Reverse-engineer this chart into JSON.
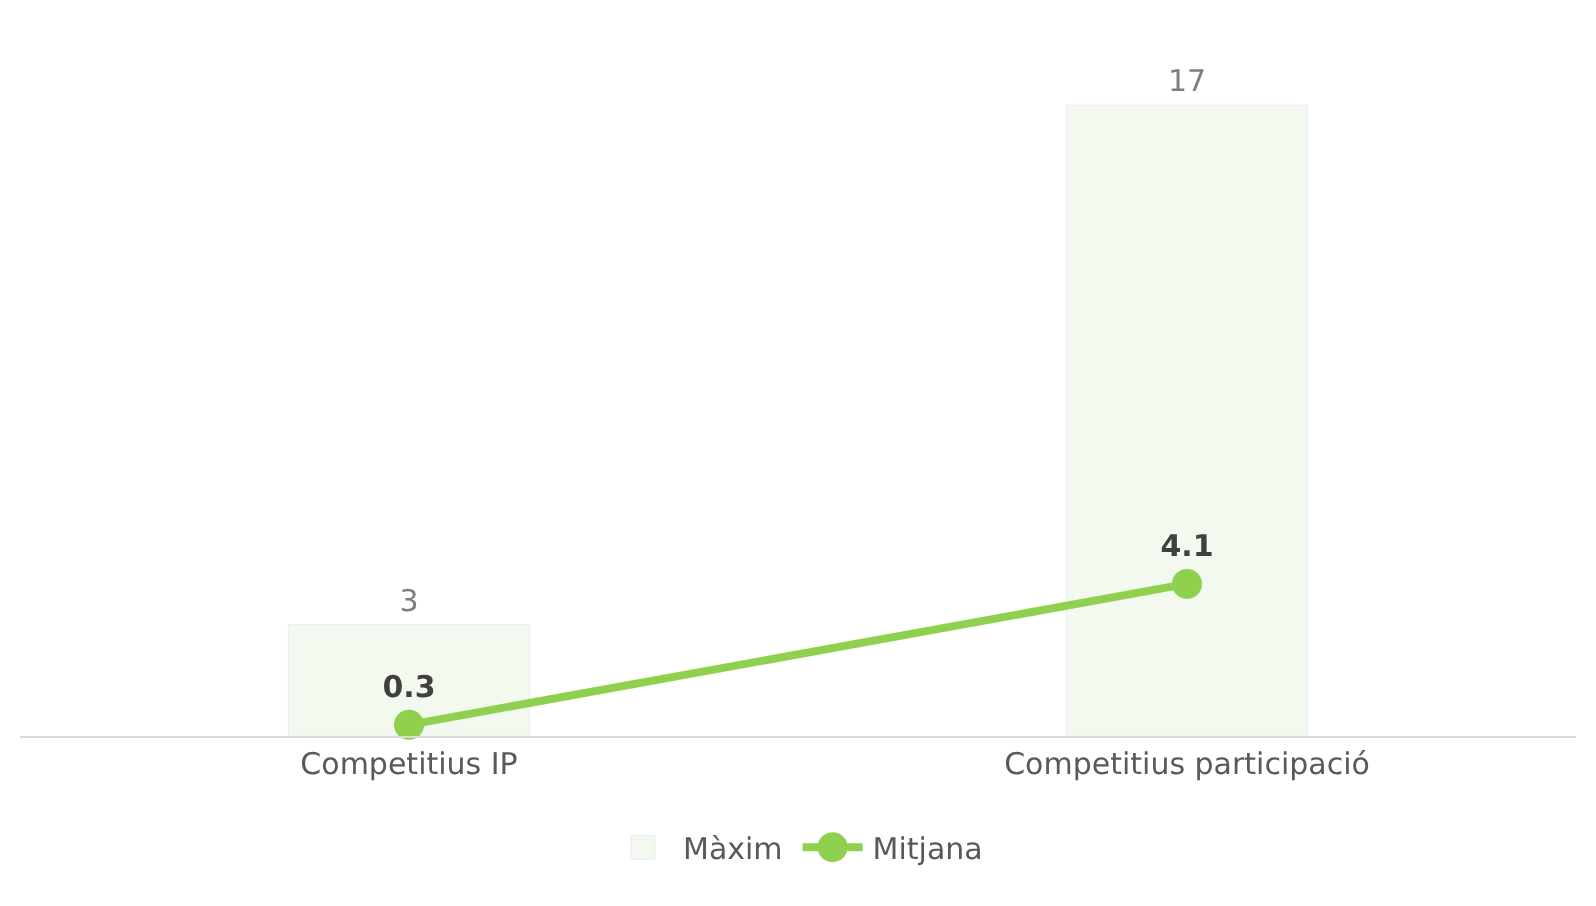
{
  "chart_data": {
    "type": "bar",
    "categories": [
      "Competitius IP",
      "Competitius participació"
    ],
    "series": [
      {
        "name": "Màxim",
        "color": "#f3f9ef",
        "values": [
          3,
          17
        ]
      },
      {
        "name": "Mitjana",
        "type": "line",
        "color": "#8fd14f",
        "values": [
          0.3,
          4.1
        ]
      }
    ],
    "data_labels": true,
    "marker": "circle",
    "line_style": "solid",
    "legend": "bottom"
  }
}
